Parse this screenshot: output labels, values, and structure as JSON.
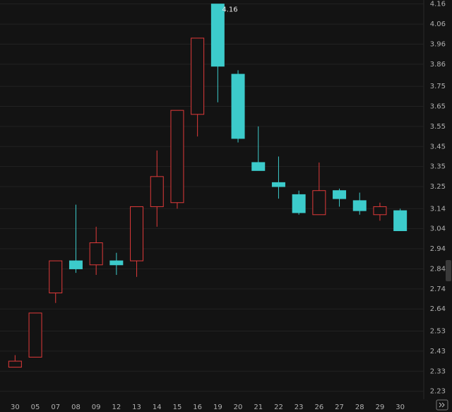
{
  "chart_data": {
    "type": "candlestick",
    "categories": [
      "30",
      "05",
      "07",
      "08",
      "09",
      "12",
      "13",
      "14",
      "15",
      "16",
      "19",
      "20",
      "21",
      "22",
      "23",
      "26",
      "27",
      "28",
      "29",
      "30"
    ],
    "open": [
      2.35,
      2.4,
      2.72,
      2.88,
      2.86,
      2.88,
      2.88,
      3.15,
      3.17,
      3.61,
      4.16,
      3.81,
      3.37,
      3.27,
      3.21,
      3.11,
      3.23,
      3.18,
      3.11,
      3.13
    ],
    "high": [
      2.41,
      2.62,
      2.88,
      3.16,
      3.05,
      2.92,
      3.15,
      3.43,
      3.63,
      3.99,
      4.16,
      3.83,
      3.55,
      3.4,
      3.23,
      3.37,
      3.24,
      3.22,
      3.17,
      3.14
    ],
    "low": [
      2.35,
      2.4,
      2.67,
      2.82,
      2.81,
      2.81,
      2.8,
      3.05,
      3.14,
      3.5,
      3.67,
      3.47,
      3.33,
      3.19,
      3.11,
      3.11,
      3.15,
      3.11,
      3.08,
      3.03
    ],
    "close": [
      2.38,
      2.62,
      2.88,
      2.84,
      2.97,
      2.86,
      3.15,
      3.3,
      3.63,
      3.99,
      3.85,
      3.49,
      3.33,
      3.25,
      3.12,
      3.23,
      3.19,
      3.13,
      3.15,
      3.03
    ],
    "rising_color": "#e03a3a",
    "falling_color": "#3ccbcb",
    "annotations": [
      {
        "text": "4.16",
        "index": 10
      }
    ],
    "ylim": [
      2.19,
      4.18
    ],
    "yticks": [
      4.16,
      4.06,
      3.96,
      3.86,
      3.75,
      3.65,
      3.55,
      3.45,
      3.35,
      3.25,
      3.14,
      3.04,
      2.94,
      2.84,
      2.74,
      2.64,
      2.53,
      2.43,
      2.33,
      2.23
    ],
    "grid": true
  }
}
